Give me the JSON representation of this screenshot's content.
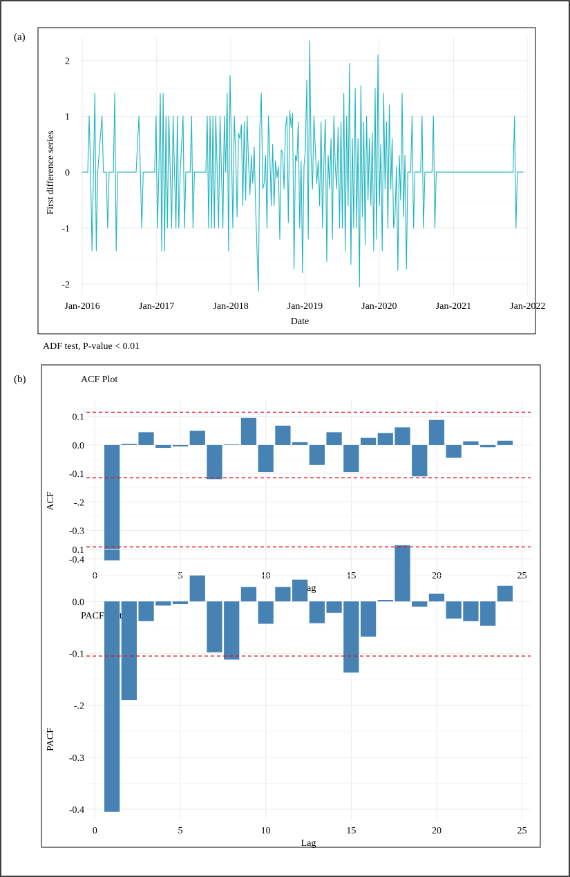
{
  "panel_a": {
    "label": "(a)",
    "caption": "ADF test, P-value < 0.01"
  },
  "panel_b": {
    "label": "(b)"
  },
  "colors": {
    "line": "#1fb5bf",
    "bar": "#4682b4",
    "ci": "#e3191c",
    "grid": "#ebebeb"
  },
  "chart_data": [
    {
      "id": "first-difference",
      "type": "line",
      "title": "",
      "xlabel": "Date",
      "ylabel": "First difference series",
      "x_range": [
        "2015-12-25",
        "2022-01-05"
      ],
      "ylim": [
        -2.2,
        2.4
      ],
      "x_ticks": [
        {
          "date": "2016-01-01",
          "label": "Jan-2016"
        },
        {
          "date": "2017-01-01",
          "label": "Jan-2017"
        },
        {
          "date": "2018-01-01",
          "label": "Jan-2018"
        },
        {
          "date": "2019-01-01",
          "label": "Jan-2019"
        },
        {
          "date": "2020-01-01",
          "label": "Jan-2020"
        },
        {
          "date": "2021-01-01",
          "label": "Jan-2021"
        },
        {
          "date": "2022-01-01",
          "label": "Jan-2022"
        }
      ],
      "y_ticks": [
        2,
        1,
        0,
        -1,
        -2
      ],
      "grid": true,
      "series": [
        {
          "points": [
            [
              "2016-01-01",
              0
            ],
            [
              "2016-01-28",
              0
            ],
            [
              "2016-02-04",
              1
            ],
            [
              "2016-02-11",
              0
            ],
            [
              "2016-02-18",
              -1.41
            ],
            [
              "2016-02-25",
              0
            ],
            [
              "2016-03-03",
              1.41
            ],
            [
              "2016-03-10",
              -1.41
            ],
            [
              "2016-03-17",
              0
            ],
            [
              "2016-04-07",
              1
            ],
            [
              "2016-04-14",
              0
            ],
            [
              "2016-04-28",
              0
            ],
            [
              "2016-05-05",
              -1
            ],
            [
              "2016-05-12",
              0
            ],
            [
              "2016-06-02",
              0
            ],
            [
              "2016-06-09",
              1.41
            ],
            [
              "2016-06-16",
              -1.41
            ],
            [
              "2016-06-23",
              0
            ],
            [
              "2016-09-22",
              0
            ],
            [
              "2016-10-06",
              1
            ],
            [
              "2016-10-20",
              -1
            ],
            [
              "2016-10-27",
              0
            ],
            [
              "2016-12-22",
              0
            ],
            [
              "2016-12-29",
              1
            ],
            [
              "2017-01-05",
              -1
            ],
            [
              "2017-01-12",
              0
            ],
            [
              "2017-01-19",
              1.41
            ],
            [
              "2017-01-26",
              -1.41
            ],
            [
              "2017-02-02",
              1.41
            ],
            [
              "2017-02-09",
              -1.41
            ],
            [
              "2017-02-16",
              1
            ],
            [
              "2017-02-23",
              -1
            ],
            [
              "2017-03-02",
              1
            ],
            [
              "2017-03-09",
              0
            ],
            [
              "2017-03-16",
              -1
            ],
            [
              "2017-03-23",
              1
            ],
            [
              "2017-03-30",
              0
            ],
            [
              "2017-04-06",
              -1
            ],
            [
              "2017-04-13",
              1
            ],
            [
              "2017-04-20",
              -1
            ],
            [
              "2017-04-27",
              0
            ],
            [
              "2017-05-11",
              1
            ],
            [
              "2017-05-18",
              -1
            ],
            [
              "2017-05-25",
              0
            ],
            [
              "2017-06-15",
              0
            ],
            [
              "2017-06-22",
              1
            ],
            [
              "2017-06-29",
              -1
            ],
            [
              "2017-07-06",
              0
            ],
            [
              "2017-08-31",
              0
            ],
            [
              "2017-09-07",
              1
            ],
            [
              "2017-09-14",
              -1
            ],
            [
              "2017-09-21",
              1
            ],
            [
              "2017-09-28",
              -1
            ],
            [
              "2017-10-05",
              1
            ],
            [
              "2017-10-12",
              -1
            ],
            [
              "2017-10-19",
              1
            ],
            [
              "2017-10-26",
              0
            ],
            [
              "2017-11-02",
              -1
            ],
            [
              "2017-11-09",
              1
            ],
            [
              "2017-11-16",
              0
            ],
            [
              "2017-11-23",
              -1
            ],
            [
              "2017-11-30",
              1
            ],
            [
              "2017-12-07",
              0
            ],
            [
              "2017-12-14",
              1.41
            ],
            [
              "2017-12-21",
              -1.41
            ],
            [
              "2017-12-28",
              1.73
            ],
            [
              "2018-01-04",
              0.5
            ],
            [
              "2018-01-11",
              -1
            ],
            [
              "2018-01-18",
              1
            ],
            [
              "2018-01-25",
              0.3
            ],
            [
              "2018-02-01",
              -0.8
            ],
            [
              "2018-02-08",
              0.7
            ],
            [
              "2018-02-15",
              0.6
            ],
            [
              "2018-02-22",
              0.85
            ],
            [
              "2018-03-01",
              -0.6
            ],
            [
              "2018-03-08",
              0.9
            ],
            [
              "2018-03-15",
              -0.5
            ],
            [
              "2018-03-22",
              1.0
            ],
            [
              "2018-03-29",
              0.2
            ],
            [
              "2018-04-05",
              -0.4
            ],
            [
              "2018-04-12",
              0.3
            ],
            [
              "2018-04-19",
              -0.2
            ],
            [
              "2018-04-26",
              0.45
            ],
            [
              "2018-05-03",
              -0.6
            ],
            [
              "2018-05-10",
              -1.41
            ],
            [
              "2018-05-17",
              -2.13
            ],
            [
              "2018-05-24",
              0.8
            ],
            [
              "2018-05-31",
              1.41
            ],
            [
              "2018-06-07",
              -0.3
            ],
            [
              "2018-06-14",
              -0.2
            ],
            [
              "2018-06-21",
              0.3
            ],
            [
              "2018-06-28",
              -1.0
            ],
            [
              "2018-07-05",
              1.0
            ],
            [
              "2018-07-12",
              0.3
            ],
            [
              "2018-07-19",
              -0.6
            ],
            [
              "2018-07-26",
              0.5
            ],
            [
              "2018-08-02",
              -0.6
            ],
            [
              "2018-08-09",
              0.2
            ],
            [
              "2018-08-16",
              -0.1
            ],
            [
              "2018-08-23",
              0.1
            ],
            [
              "2018-08-30",
              -1.2
            ],
            [
              "2018-09-06",
              0.4
            ],
            [
              "2018-09-13",
              0.35
            ],
            [
              "2018-09-20",
              -0.3
            ],
            [
              "2018-09-27",
              0.8
            ],
            [
              "2018-10-04",
              1.0
            ],
            [
              "2018-10-11",
              -0.9
            ],
            [
              "2018-10-18",
              1.1
            ],
            [
              "2018-10-25",
              0.8
            ],
            [
              "2018-11-01",
              1.05
            ],
            [
              "2018-11-08",
              -1.73
            ],
            [
              "2018-11-15",
              0.3
            ],
            [
              "2018-11-22",
              0.2
            ],
            [
              "2018-11-29",
              0.9
            ],
            [
              "2018-12-06",
              -1.0
            ],
            [
              "2018-12-13",
              0.2
            ],
            [
              "2018-12-20",
              -1.8
            ],
            [
              "2018-12-27",
              0.1
            ],
            [
              "2019-01-03",
              0.4
            ],
            [
              "2019-01-10",
              1.65
            ],
            [
              "2019-01-17",
              -1.2
            ],
            [
              "2019-01-24",
              2.35
            ],
            [
              "2019-01-31",
              0.3
            ],
            [
              "2019-02-07",
              -0.3
            ],
            [
              "2019-02-14",
              1.0
            ],
            [
              "2019-02-21",
              0.4
            ],
            [
              "2019-02-28",
              -0.2
            ],
            [
              "2019-03-07",
              0.2
            ],
            [
              "2019-03-14",
              -0.6
            ],
            [
              "2019-03-21",
              0.9
            ],
            [
              "2019-03-28",
              -1.0
            ],
            [
              "2019-04-04",
              0.2
            ],
            [
              "2019-04-11",
              0.95
            ],
            [
              "2019-04-18",
              -1.6
            ],
            [
              "2019-04-25",
              0.3
            ],
            [
              "2019-05-02",
              -0.3
            ],
            [
              "2019-05-09",
              0.6
            ],
            [
              "2019-05-16",
              -1.2
            ],
            [
              "2019-05-23",
              1.0
            ],
            [
              "2019-05-30",
              0.1
            ],
            [
              "2019-06-06",
              -0.3
            ],
            [
              "2019-06-13",
              0.8
            ],
            [
              "2019-06-20",
              -1.0
            ],
            [
              "2019-06-27",
              0.9
            ],
            [
              "2019-07-04",
              -1.0
            ],
            [
              "2019-07-11",
              1.41
            ],
            [
              "2019-07-18",
              -1.41
            ],
            [
              "2019-07-25",
              1.0
            ],
            [
              "2019-08-01",
              -0.6
            ],
            [
              "2019-08-08",
              1.95
            ],
            [
              "2019-08-15",
              -1.65
            ],
            [
              "2019-08-22",
              0.6
            ],
            [
              "2019-08-29",
              -1.0
            ],
            [
              "2019-09-05",
              1.5
            ],
            [
              "2019-09-12",
              -1.0
            ],
            [
              "2019-09-19",
              0.6
            ],
            [
              "2019-09-26",
              -2.05
            ],
            [
              "2019-10-03",
              1.55
            ],
            [
              "2019-10-10",
              -0.8
            ],
            [
              "2019-10-17",
              0.9
            ],
            [
              "2019-10-24",
              -1.3
            ],
            [
              "2019-10-31",
              1.0
            ],
            [
              "2019-11-07",
              -0.5
            ],
            [
              "2019-11-14",
              0.6
            ],
            [
              "2019-11-21",
              -0.6
            ],
            [
              "2019-11-28",
              0.7
            ],
            [
              "2019-12-05",
              -1.41
            ],
            [
              "2019-12-12",
              1.5
            ],
            [
              "2019-12-19",
              -1.2
            ],
            [
              "2019-12-26",
              2.1
            ],
            [
              "2020-01-02",
              -0.6
            ],
            [
              "2020-01-09",
              0.5
            ],
            [
              "2020-01-16",
              -1.41
            ],
            [
              "2020-01-23",
              1.41
            ],
            [
              "2020-01-30",
              -0.3
            ],
            [
              "2020-02-06",
              0.9
            ],
            [
              "2020-02-13",
              -1.0
            ],
            [
              "2020-02-20",
              1.2
            ],
            [
              "2020-02-27",
              -0.3
            ],
            [
              "2020-03-05",
              0.6
            ],
            [
              "2020-03-12",
              -1.0
            ],
            [
              "2020-03-19",
              -0.8
            ],
            [
              "2020-03-26",
              0.1
            ],
            [
              "2020-04-02",
              -1.76
            ],
            [
              "2020-04-09",
              0.3
            ],
            [
              "2020-04-16",
              -0.5
            ],
            [
              "2020-04-23",
              1.41
            ],
            [
              "2020-04-30",
              -0.8
            ],
            [
              "2020-05-07",
              0.3
            ],
            [
              "2020-05-14",
              -1.73
            ],
            [
              "2020-05-21",
              0
            ],
            [
              "2020-06-04",
              0
            ],
            [
              "2020-06-11",
              1
            ],
            [
              "2020-06-18",
              -1
            ],
            [
              "2020-06-25",
              0
            ],
            [
              "2020-07-23",
              0
            ],
            [
              "2020-07-30",
              1
            ],
            [
              "2020-08-06",
              -1
            ],
            [
              "2020-08-13",
              0
            ],
            [
              "2020-09-17",
              0
            ],
            [
              "2020-09-24",
              1
            ],
            [
              "2020-10-01",
              -1
            ],
            [
              "2020-10-08",
              0
            ],
            [
              "2021-10-21",
              0
            ],
            [
              "2021-10-28",
              1
            ],
            [
              "2021-11-04",
              -1
            ],
            [
              "2021-11-11",
              0
            ],
            [
              "2021-12-09",
              0
            ]
          ]
        }
      ]
    },
    {
      "id": "acf",
      "type": "bar",
      "title": "ACF Plot",
      "xlabel": "Lag",
      "ylabel": "ACF",
      "xlim": [
        -0.5,
        25.5
      ],
      "ylim": [
        -0.42,
        0.16
      ],
      "x_ticks": [
        0,
        5,
        10,
        15,
        20,
        25
      ],
      "y_ticks": [
        0.1,
        0.0,
        -0.1,
        -0.2,
        -0.3,
        -0.4
      ],
      "y_tick_labels": [
        "0.1",
        "0.0",
        "-0.1",
        "-.2",
        "-0.3",
        "-0.4"
      ],
      "grid": true,
      "ci": [
        0.115,
        -0.115
      ],
      "lags": [
        1,
        2,
        3,
        4,
        5,
        6,
        7,
        8,
        9,
        10,
        11,
        12,
        13,
        14,
        15,
        16,
        17,
        18,
        19,
        20,
        21,
        22,
        23,
        24
      ],
      "values": [
        -0.405,
        0.004,
        0.045,
        -0.01,
        -0.005,
        0.05,
        -0.12,
        0.002,
        0.095,
        -0.095,
        0.068,
        0.01,
        -0.07,
        0.045,
        -0.095,
        0.025,
        0.042,
        0.062,
        -0.11,
        0.088,
        -0.045,
        0.013,
        -0.008,
        0.015
      ]
    },
    {
      "id": "pacf",
      "type": "bar",
      "title": "PACF Plot",
      "xlabel": "Lag",
      "ylabel": "PACF",
      "xlim": [
        -0.5,
        25.5
      ],
      "ylim": [
        -0.42,
        0.14
      ],
      "x_ticks": [
        0,
        5,
        10,
        15,
        20,
        25
      ],
      "y_ticks": [
        0.1,
        0.0,
        -0.1,
        -0.2,
        -0.3,
        -0.4
      ],
      "y_tick_labels": [
        "0.1",
        "0.0",
        "-0.1",
        "-.2",
        "-0.3",
        "-0.4"
      ],
      "grid": true,
      "ci": [
        0.105,
        -0.105
      ],
      "lags": [
        1,
        2,
        3,
        4,
        5,
        6,
        7,
        8,
        9,
        10,
        11,
        12,
        13,
        14,
        15,
        16,
        17,
        18,
        19,
        20,
        21,
        22,
        23,
        24
      ],
      "values": [
        -0.405,
        -0.19,
        -0.038,
        -0.008,
        -0.005,
        0.05,
        -0.098,
        -0.112,
        0.028,
        -0.043,
        0.028,
        0.042,
        -0.042,
        -0.022,
        -0.137,
        -0.068,
        0.003,
        0.108,
        -0.01,
        0.015,
        -0.033,
        -0.038,
        -0.047,
        0.03
      ]
    }
  ]
}
